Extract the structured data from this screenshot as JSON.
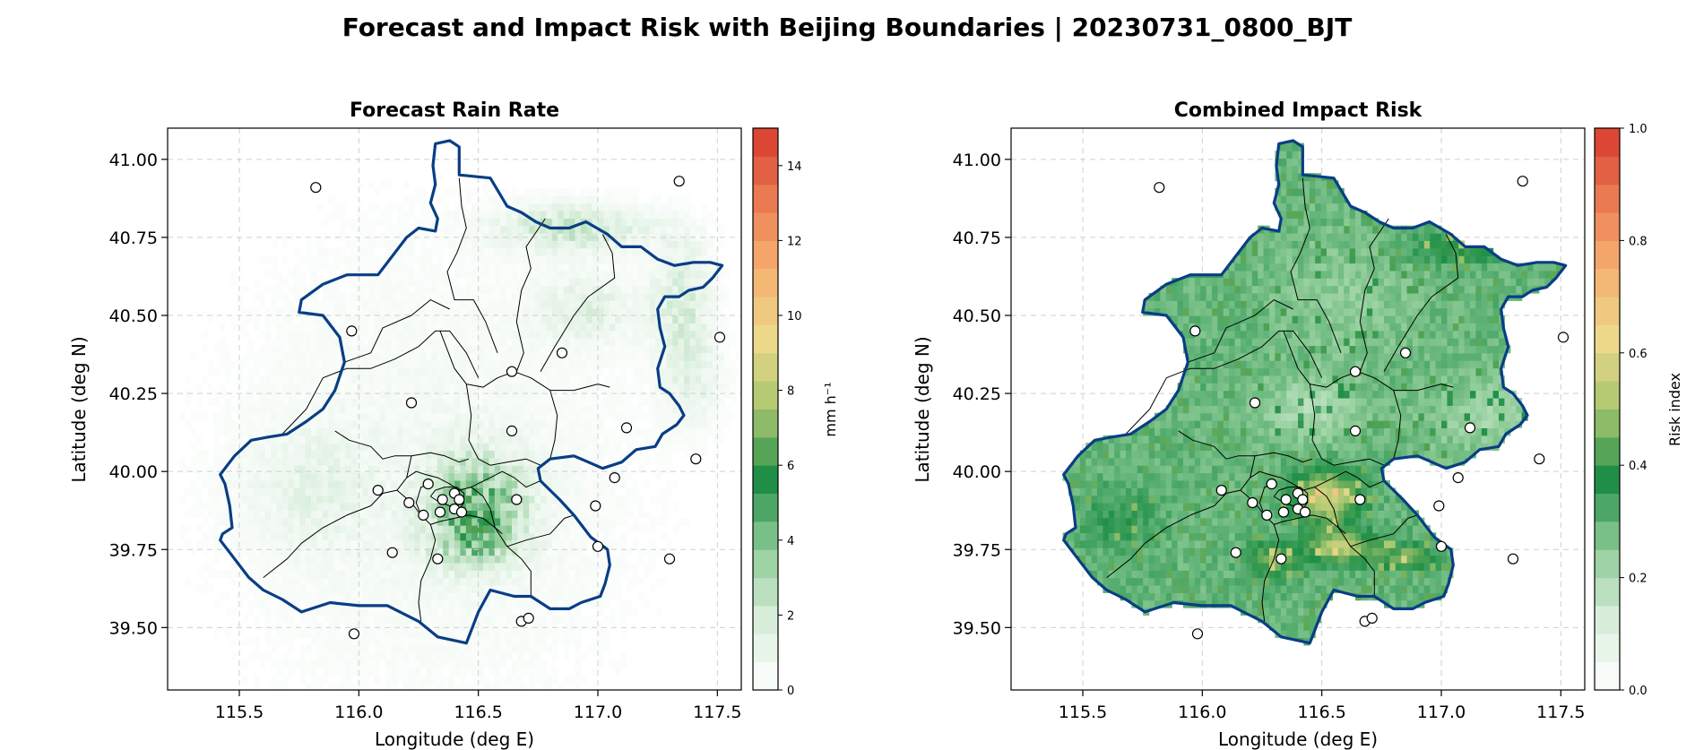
{
  "figure": {
    "title": "Forecast and Impact Risk with Beijing Boundaries | 20230731_0800_BJT"
  },
  "chart_data": [
    {
      "type": "heatmap",
      "title": "Forecast Rain Rate",
      "xlabel": "Longitude (deg E)",
      "ylabel": "Latitude (deg N)",
      "xlim": [
        115.2,
        117.6
      ],
      "ylim": [
        39.3,
        41.1
      ],
      "xticks": [
        "115.5",
        "116.0",
        "116.5",
        "117.0",
        "117.5"
      ],
      "yticks": [
        "39.50",
        "39.75",
        "40.00",
        "40.25",
        "40.50",
        "40.75",
        "41.00"
      ],
      "grid": true,
      "colorbar": {
        "label": "mm h⁻¹",
        "ticks": [
          "0",
          "2",
          "4",
          "6",
          "8",
          "10",
          "12",
          "14"
        ],
        "range": [
          0,
          15
        ],
        "colors": [
          "#ffffff",
          "#d8eedb",
          "#8fcc98",
          "#1f8f47",
          "#a8c66f",
          "#ecd98a",
          "#f6b070",
          "#ea7a52",
          "#d73a2c"
        ]
      },
      "field_peak_mm_h": 4.5
    },
    {
      "type": "heatmap",
      "title": "Combined Impact Risk",
      "xlabel": "Longitude (deg E)",
      "ylabel": "Latitude (deg N)",
      "xlim": [
        115.2,
        117.6
      ],
      "ylim": [
        39.3,
        41.1
      ],
      "xticks": [
        "115.5",
        "116.0",
        "116.5",
        "117.0",
        "117.5"
      ],
      "yticks": [
        "39.50",
        "39.75",
        "40.00",
        "40.25",
        "40.50",
        "40.75",
        "41.00"
      ],
      "grid": true,
      "colorbar": {
        "label": "Risk index",
        "ticks": [
          "0.0",
          "0.2",
          "0.4",
          "0.6",
          "0.8",
          "1.0"
        ],
        "range": [
          0,
          1
        ],
        "colors": [
          "#ffffff",
          "#d8eedb",
          "#8fcc98",
          "#1f8f47",
          "#a8c66f",
          "#ecd98a",
          "#f6b070",
          "#ea7a52",
          "#d73a2c"
        ]
      },
      "risk_range_shown": [
        0.2,
        0.65
      ]
    }
  ],
  "boundary": [
    [
      116.32,
      41.05
    ],
    [
      116.38,
      41.06
    ],
    [
      116.42,
      41.04
    ],
    [
      116.42,
      40.95
    ],
    [
      116.55,
      40.94
    ],
    [
      116.62,
      40.85
    ],
    [
      116.68,
      40.83
    ],
    [
      116.74,
      40.8
    ],
    [
      116.8,
      40.78
    ],
    [
      116.88,
      40.78
    ],
    [
      116.95,
      40.8
    ],
    [
      117.04,
      40.76
    ],
    [
      117.1,
      40.72
    ],
    [
      117.18,
      40.72
    ],
    [
      117.25,
      40.68
    ],
    [
      117.32,
      40.66
    ],
    [
      117.4,
      40.67
    ],
    [
      117.47,
      40.67
    ],
    [
      117.52,
      40.66
    ],
    [
      117.48,
      40.62
    ],
    [
      117.44,
      40.59
    ],
    [
      117.38,
      40.58
    ],
    [
      117.34,
      40.56
    ],
    [
      117.28,
      40.56
    ],
    [
      117.25,
      40.52
    ],
    [
      117.26,
      40.46
    ],
    [
      117.28,
      40.4
    ],
    [
      117.25,
      40.33
    ],
    [
      117.26,
      40.27
    ],
    [
      117.3,
      40.25
    ],
    [
      117.34,
      40.21
    ],
    [
      117.36,
      40.18
    ],
    [
      117.33,
      40.15
    ],
    [
      117.27,
      40.12
    ],
    [
      117.24,
      40.08
    ],
    [
      117.16,
      40.07
    ],
    [
      117.1,
      40.03
    ],
    [
      117.02,
      40.01
    ],
    [
      116.96,
      40.03
    ],
    [
      116.9,
      40.05
    ],
    [
      116.8,
      40.04
    ],
    [
      116.75,
      40.01
    ],
    [
      116.76,
      39.97
    ],
    [
      116.84,
      39.91
    ],
    [
      116.9,
      39.86
    ],
    [
      116.93,
      39.83
    ],
    [
      116.97,
      39.79
    ],
    [
      117.04,
      39.75
    ],
    [
      117.05,
      39.7
    ],
    [
      117.03,
      39.64
    ],
    [
      117.01,
      39.6
    ],
    [
      116.93,
      39.58
    ],
    [
      116.88,
      39.56
    ],
    [
      116.8,
      39.56
    ],
    [
      116.72,
      39.6
    ],
    [
      116.65,
      39.6
    ],
    [
      116.55,
      39.62
    ],
    [
      116.5,
      39.55
    ],
    [
      116.45,
      39.45
    ],
    [
      116.33,
      39.47
    ],
    [
      116.25,
      39.52
    ],
    [
      116.12,
      39.57
    ],
    [
      116.0,
      39.57
    ],
    [
      115.88,
      39.58
    ],
    [
      115.76,
      39.55
    ],
    [
      115.68,
      39.59
    ],
    [
      115.6,
      39.62
    ],
    [
      115.54,
      39.66
    ],
    [
      115.5,
      39.7
    ],
    [
      115.42,
      39.78
    ],
    [
      115.43,
      39.8
    ],
    [
      115.47,
      39.82
    ],
    [
      115.46,
      39.89
    ],
    [
      115.44,
      39.96
    ],
    [
      115.42,
      39.99
    ],
    [
      115.48,
      40.05
    ],
    [
      115.55,
      40.1
    ],
    [
      115.62,
      40.11
    ],
    [
      115.7,
      40.12
    ],
    [
      115.78,
      40.16
    ],
    [
      115.85,
      40.2
    ],
    [
      115.9,
      40.26
    ],
    [
      115.94,
      40.35
    ],
    [
      115.92,
      40.43
    ],
    [
      115.85,
      40.5
    ],
    [
      115.75,
      40.51
    ],
    [
      115.76,
      40.55
    ],
    [
      115.85,
      40.6
    ],
    [
      115.95,
      40.63
    ],
    [
      116.08,
      40.63
    ],
    [
      116.12,
      40.67
    ],
    [
      116.2,
      40.75
    ],
    [
      116.25,
      40.78
    ],
    [
      116.32,
      40.77
    ],
    [
      116.33,
      40.81
    ],
    [
      116.3,
      40.86
    ],
    [
      116.32,
      40.92
    ],
    [
      116.31,
      40.98
    ],
    [
      116.32,
      41.05
    ]
  ],
  "districts": [
    [
      [
        116.42,
        40.94
      ],
      [
        116.43,
        40.85
      ],
      [
        116.45,
        40.78
      ],
      [
        116.41,
        40.7
      ],
      [
        116.37,
        40.64
      ],
      [
        116.4,
        40.55
      ],
      [
        116.48,
        40.55
      ],
      [
        116.53,
        40.48
      ],
      [
        116.58,
        40.38
      ]
    ],
    [
      [
        116.78,
        40.81
      ],
      [
        116.7,
        40.72
      ],
      [
        116.72,
        40.65
      ],
      [
        116.68,
        40.58
      ],
      [
        116.66,
        40.48
      ],
      [
        116.69,
        40.38
      ],
      [
        116.66,
        40.32
      ]
    ],
    [
      [
        117.02,
        40.76
      ],
      [
        117.06,
        40.7
      ],
      [
        117.07,
        40.62
      ],
      [
        116.96,
        40.56
      ],
      [
        116.9,
        40.5
      ],
      [
        116.82,
        40.4
      ],
      [
        116.76,
        40.32
      ]
    ],
    [
      [
        115.94,
        40.35
      ],
      [
        116.05,
        40.38
      ],
      [
        116.1,
        40.46
      ],
      [
        116.22,
        40.5
      ],
      [
        116.3,
        40.55
      ],
      [
        116.38,
        40.52
      ]
    ],
    [
      [
        115.68,
        40.12
      ],
      [
        115.78,
        40.2
      ],
      [
        115.85,
        40.3
      ],
      [
        115.95,
        40.33
      ],
      [
        116.05,
        40.33
      ],
      [
        116.15,
        40.36
      ],
      [
        116.25,
        40.4
      ],
      [
        116.32,
        40.45
      ],
      [
        116.38,
        40.45
      ],
      [
        116.45,
        40.38
      ],
      [
        116.5,
        40.3
      ]
    ],
    [
      [
        116.34,
        40.45
      ],
      [
        116.4,
        40.33
      ],
      [
        116.45,
        40.28
      ],
      [
        116.52,
        40.27
      ],
      [
        116.58,
        40.3
      ],
      [
        116.65,
        40.32
      ],
      [
        116.72,
        40.3
      ],
      [
        116.8,
        40.26
      ],
      [
        116.9,
        40.26
      ],
      [
        117.0,
        40.28
      ],
      [
        117.05,
        40.27
      ]
    ],
    [
      [
        116.45,
        40.28
      ],
      [
        116.47,
        40.18
      ],
      [
        116.46,
        40.1
      ],
      [
        116.5,
        40.04
      ],
      [
        116.55,
        40.02
      ],
      [
        116.62,
        40.03
      ],
      [
        116.7,
        40.04
      ],
      [
        116.76,
        40.02
      ]
    ],
    [
      [
        116.8,
        40.26
      ],
      [
        116.83,
        40.18
      ],
      [
        116.82,
        40.1
      ],
      [
        116.8,
        40.04
      ]
    ],
    [
      [
        115.9,
        40.13
      ],
      [
        115.96,
        40.1
      ],
      [
        116.05,
        40.08
      ],
      [
        116.1,
        40.04
      ],
      [
        116.15,
        40.05
      ],
      [
        116.22,
        40.05
      ],
      [
        116.3,
        40.06
      ],
      [
        116.36,
        40.05
      ],
      [
        116.42,
        40.03
      ],
      [
        116.46,
        40.04
      ]
    ],
    [
      [
        116.22,
        40.05
      ],
      [
        116.2,
        39.98
      ],
      [
        116.16,
        39.94
      ],
      [
        116.1,
        39.93
      ],
      [
        116.05,
        39.89
      ],
      [
        115.95,
        39.86
      ],
      [
        115.85,
        39.82
      ],
      [
        115.76,
        39.77
      ],
      [
        115.7,
        39.72
      ],
      [
        115.6,
        39.66
      ]
    ],
    [
      [
        116.16,
        39.94
      ],
      [
        116.22,
        39.9
      ],
      [
        116.26,
        39.86
      ],
      [
        116.3,
        39.83
      ],
      [
        116.34,
        39.84
      ],
      [
        116.4,
        39.85
      ],
      [
        116.46,
        39.86
      ],
      [
        116.52,
        39.85
      ],
      [
        116.57,
        39.82
      ],
      [
        116.6,
        39.8
      ]
    ],
    [
      [
        116.2,
        39.98
      ],
      [
        116.24,
        40.0
      ],
      [
        116.28,
        39.99
      ],
      [
        116.33,
        39.98
      ],
      [
        116.38,
        39.96
      ],
      [
        116.42,
        39.94
      ],
      [
        116.47,
        39.95
      ]
    ],
    [
      [
        116.3,
        39.83
      ],
      [
        116.32,
        39.78
      ],
      [
        116.3,
        39.72
      ],
      [
        116.26,
        39.65
      ],
      [
        116.25,
        39.58
      ],
      [
        116.26,
        39.52
      ]
    ],
    [
      [
        116.47,
        39.95
      ],
      [
        116.52,
        39.92
      ],
      [
        116.55,
        39.88
      ],
      [
        116.57,
        39.82
      ],
      [
        116.62,
        39.76
      ],
      [
        116.68,
        39.72
      ],
      [
        116.72,
        39.68
      ],
      [
        116.72,
        39.6
      ]
    ],
    [
      [
        116.62,
        39.76
      ],
      [
        116.7,
        39.78
      ],
      [
        116.8,
        39.8
      ],
      [
        116.86,
        39.85
      ],
      [
        116.9,
        39.86
      ]
    ],
    [
      [
        116.47,
        39.95
      ],
      [
        116.55,
        39.98
      ],
      [
        116.6,
        40.0
      ],
      [
        116.65,
        39.98
      ],
      [
        116.7,
        39.95
      ],
      [
        116.76,
        39.97
      ]
    ],
    [
      [
        116.3,
        39.92
      ],
      [
        116.34,
        39.9
      ],
      [
        116.38,
        39.89
      ],
      [
        116.42,
        39.88
      ],
      [
        116.44,
        39.9
      ],
      [
        116.44,
        39.93
      ],
      [
        116.41,
        39.95
      ],
      [
        116.36,
        39.95
      ],
      [
        116.32,
        39.94
      ],
      [
        116.3,
        39.92
      ]
    ],
    [
      [
        116.26,
        39.86
      ],
      [
        116.24,
        39.9
      ],
      [
        116.26,
        39.95
      ],
      [
        116.3,
        39.96
      ]
    ]
  ],
  "stations": [
    [
      115.82,
      40.91
    ],
    [
      117.34,
      40.93
    ],
    [
      115.97,
      40.45
    ],
    [
      117.51,
      40.43
    ],
    [
      116.85,
      40.38
    ],
    [
      116.64,
      40.32
    ],
    [
      116.22,
      40.22
    ],
    [
      116.64,
      40.13
    ],
    [
      117.12,
      40.14
    ],
    [
      117.41,
      40.04
    ],
    [
      117.07,
      39.98
    ],
    [
      116.08,
      39.94
    ],
    [
      116.29,
      39.96
    ],
    [
      116.4,
      39.93
    ],
    [
      116.42,
      39.91
    ],
    [
      116.35,
      39.91
    ],
    [
      116.4,
      39.88
    ],
    [
      116.43,
      39.87
    ],
    [
      116.21,
      39.9
    ],
    [
      116.27,
      39.86
    ],
    [
      116.34,
      39.87
    ],
    [
      116.66,
      39.91
    ],
    [
      116.99,
      39.89
    ],
    [
      117.0,
      39.76
    ],
    [
      117.3,
      39.72
    ],
    [
      116.14,
      39.74
    ],
    [
      116.33,
      39.72
    ],
    [
      116.68,
      39.52
    ],
    [
      116.71,
      39.53
    ],
    [
      115.98,
      39.48
    ]
  ]
}
